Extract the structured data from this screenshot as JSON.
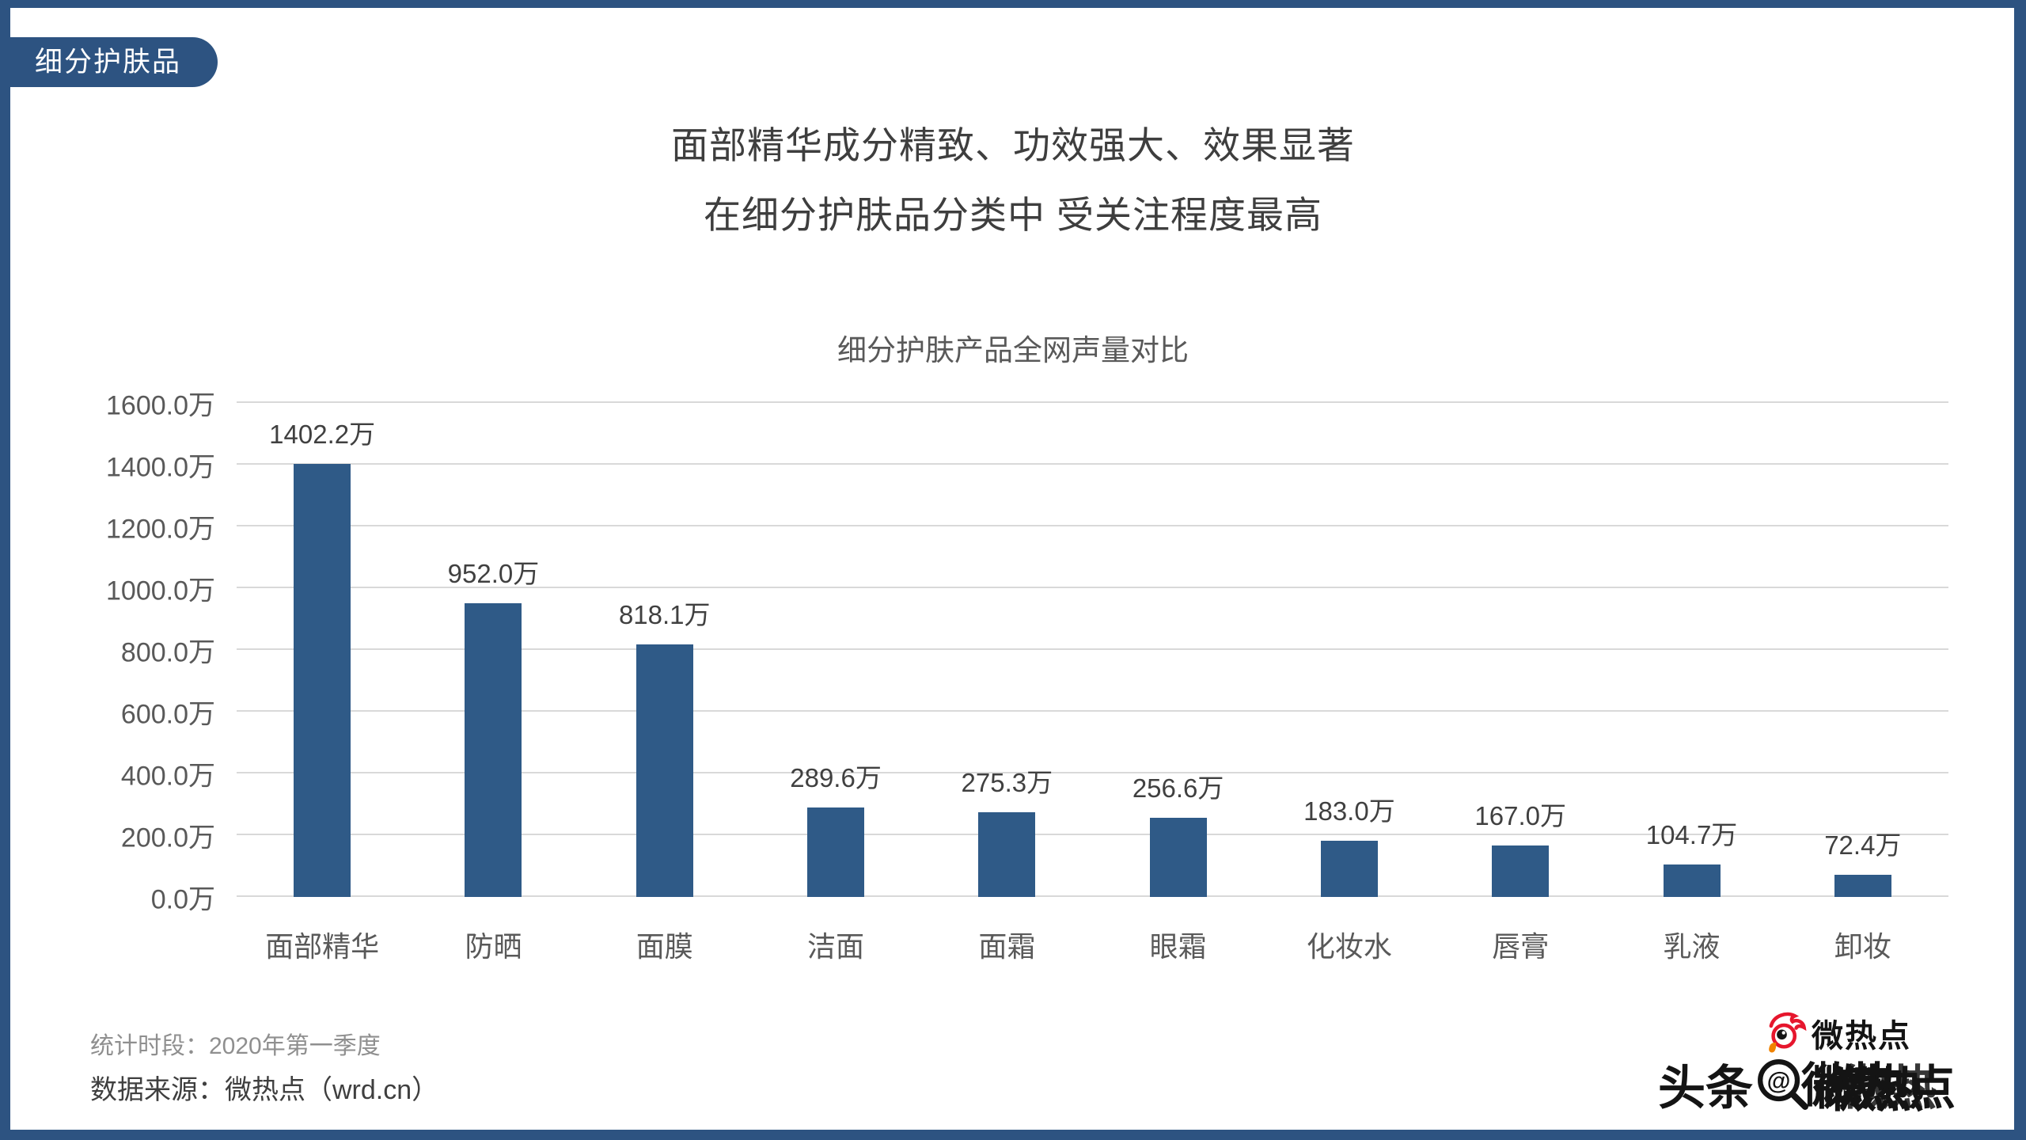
{
  "page": {
    "badge": "细分护肤品",
    "title_line1": "面部精华成分精致、功效强大、效果显著",
    "title_line2": "在细分护肤品分类中 受关注程度最高",
    "footer": {
      "period": "统计时段：2020年第一季度",
      "source": "数据来源：微热点（wrd.cn）"
    },
    "watermark": {
      "brand": "微热点",
      "overlay_prefix": "头条",
      "overlay_at": "@",
      "overlay_garble": "微热",
      "overlay_end": "点",
      "icons": [
        "sina-eye-icon",
        "magnifier-icon"
      ]
    },
    "colors": {
      "frame_blue": "#2D5381",
      "bar_blue": "#2F5A87",
      "grid": "#D9D9D9",
      "axis_text": "#595959",
      "value_text": "#404040",
      "title_text": "#3E3E3E",
      "footer_light": "#8F8F8F",
      "footer_dark": "#3F3F3F",
      "logo_red": "#E6162D",
      "logo_orange": "#F08300"
    }
  },
  "chart_data": {
    "type": "bar",
    "title": "细分护肤产品全网声量对比",
    "categories": [
      "面部精华",
      "防晒",
      "面膜",
      "洁面",
      "面霜",
      "眼霜",
      "化妆水",
      "唇膏",
      "乳液",
      "卸妆"
    ],
    "values": [
      1402.2,
      952.0,
      818.1,
      289.6,
      275.3,
      256.6,
      183.0,
      167.0,
      104.7,
      72.4
    ],
    "value_labels": [
      "1402.2万",
      "952.0万",
      "818.1万",
      "289.6万",
      "275.3万",
      "256.6万",
      "183.0万",
      "167.0万",
      "104.7万",
      "72.4万"
    ],
    "unit": "万",
    "xlabel": "",
    "ylabel": "",
    "ylim": [
      0,
      1600
    ],
    "ytick_step": 200,
    "ytick_labels": [
      "0.0万",
      "200.0万",
      "400.0万",
      "600.0万",
      "800.0万",
      "1000.0万",
      "1200.0万",
      "1400.0万",
      "1600.0万"
    ],
    "grid": true,
    "legend": false,
    "bar_color": "#2F5A87"
  }
}
